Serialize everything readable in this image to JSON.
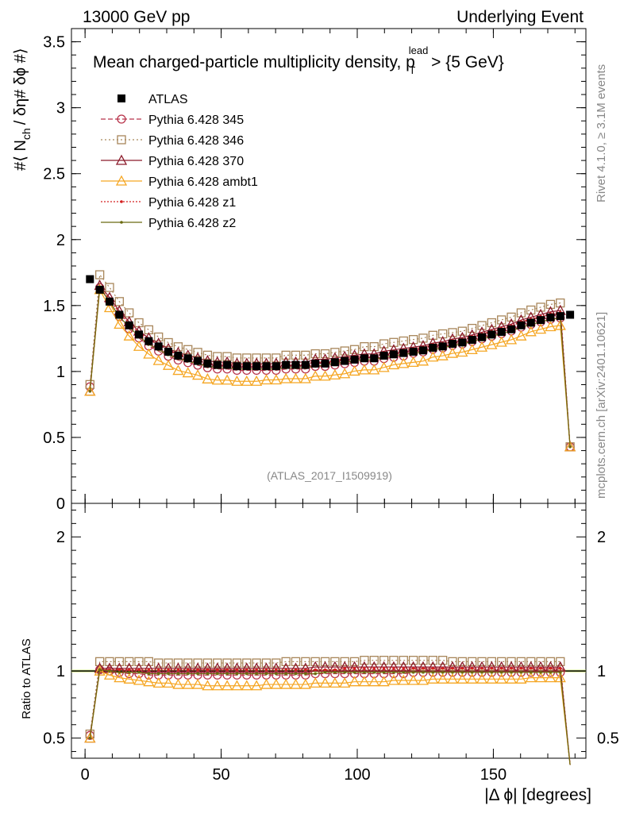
{
  "header": {
    "left": "13000 GeV pp",
    "right": "Underlying Event"
  },
  "side": {
    "rivet": "Rivet 4.1.0, ≥ 3.1M events",
    "mcplots": "mcplots.cern.ch [arXiv:2401.10621]"
  },
  "chart_data": {
    "type": "scatter",
    "title": "Mean charged-particle multiplicity density, p",
    "title_sup": "lead",
    "title_sub": "T",
    "title_end": " > {5 GeV}",
    "analysis_id": "(ATLAS_2017_I1509919)",
    "ylabel_main": {
      "pre": "#⟨ N",
      "sub": "ch",
      "post": "/ δη# δϕ #⟩"
    },
    "ylabel_ratio": "Ratio to ATLAS",
    "xlabel": "|Δ ϕ| [degrees]",
    "xlim": [
      -5,
      184
    ],
    "ylim_main": [
      0,
      3.6
    ],
    "ylim_ratio": [
      0.35,
      2.25
    ],
    "x_ticks": [
      "0",
      "50",
      "100",
      "150"
    ],
    "y_ticks_main": [
      "0",
      "0.5",
      "1",
      "1.5",
      "2",
      "2.5",
      "3",
      "3.5"
    ],
    "y_ticks_ratio": [
      "0.5",
      "1",
      "2"
    ],
    "x": [
      1.8,
      5.4,
      9.0,
      12.6,
      16.2,
      19.8,
      23.4,
      27.0,
      30.6,
      34.2,
      37.8,
      41.4,
      45.0,
      48.6,
      52.2,
      55.8,
      59.4,
      63.0,
      66.6,
      70.2,
      73.8,
      77.4,
      81.0,
      84.6,
      88.2,
      91.8,
      95.4,
      99.0,
      102.6,
      106.2,
      109.8,
      113.4,
      117.0,
      120.6,
      124.2,
      127.8,
      131.4,
      135.0,
      138.6,
      142.2,
      145.8,
      149.4,
      153.0,
      156.6,
      160.2,
      163.8,
      167.4,
      171.0,
      174.6,
      178.2
    ],
    "atlas": [
      1.7,
      1.62,
      1.53,
      1.43,
      1.35,
      1.28,
      1.23,
      1.19,
      1.15,
      1.12,
      1.1,
      1.08,
      1.06,
      1.05,
      1.05,
      1.04,
      1.04,
      1.04,
      1.04,
      1.04,
      1.05,
      1.05,
      1.05,
      1.06,
      1.06,
      1.07,
      1.08,
      1.09,
      1.1,
      1.1,
      1.12,
      1.13,
      1.14,
      1.15,
      1.16,
      1.18,
      1.19,
      1.21,
      1.22,
      1.24,
      1.26,
      1.28,
      1.3,
      1.32,
      1.35,
      1.37,
      1.39,
      1.41,
      1.42,
      1.43
    ],
    "series": [
      {
        "name": "Pythia 6.428 345",
        "color": "#b8334a",
        "marker": "circle-open",
        "dash": "6,3",
        "ratio": [
          0.52,
          1.01,
          1.0,
          0.99,
          0.98,
          0.98,
          0.97,
          0.97,
          0.97,
          0.97,
          0.97,
          0.97,
          0.97,
          0.97,
          0.97,
          0.97,
          0.97,
          0.97,
          0.97,
          0.97,
          0.97,
          0.97,
          0.97,
          0.98,
          0.98,
          0.98,
          0.98,
          0.98,
          0.98,
          0.98,
          0.98,
          0.98,
          0.98,
          0.99,
          0.99,
          0.99,
          0.99,
          0.99,
          0.99,
          0.99,
          0.99,
          0.99,
          0.99,
          0.99,
          0.99,
          0.99,
          0.99,
          0.99,
          0.99,
          0.3
        ]
      },
      {
        "name": "Pythia 6.428 346",
        "color": "#a8865a",
        "marker": "square-open",
        "dash": "2,3",
        "ratio": [
          0.53,
          1.07,
          1.07,
          1.07,
          1.07,
          1.07,
          1.07,
          1.06,
          1.06,
          1.06,
          1.06,
          1.06,
          1.06,
          1.06,
          1.06,
          1.06,
          1.06,
          1.06,
          1.06,
          1.06,
          1.07,
          1.07,
          1.07,
          1.07,
          1.07,
          1.07,
          1.07,
          1.07,
          1.08,
          1.08,
          1.08,
          1.08,
          1.08,
          1.08,
          1.08,
          1.08,
          1.08,
          1.07,
          1.07,
          1.07,
          1.07,
          1.07,
          1.07,
          1.07,
          1.07,
          1.07,
          1.07,
          1.07,
          1.07,
          0.3
        ]
      },
      {
        "name": "Pythia 6.428 370",
        "color": "#8b1a2a",
        "marker": "triangle-open",
        "dash": "",
        "ratio": [
          0.5,
          1.02,
          1.02,
          1.02,
          1.02,
          1.02,
          1.02,
          1.02,
          1.02,
          1.02,
          1.02,
          1.02,
          1.02,
          1.02,
          1.02,
          1.02,
          1.02,
          1.02,
          1.02,
          1.02,
          1.02,
          1.02,
          1.02,
          1.03,
          1.03,
          1.03,
          1.03,
          1.03,
          1.03,
          1.03,
          1.03,
          1.03,
          1.03,
          1.03,
          1.03,
          1.03,
          1.03,
          1.03,
          1.03,
          1.03,
          1.03,
          1.03,
          1.03,
          1.03,
          1.03,
          1.03,
          1.03,
          1.03,
          1.03,
          0.3
        ]
      },
      {
        "name": "Pythia 6.428 ambt1",
        "color": "#f5a623",
        "marker": "triangle-open",
        "dash": "",
        "ratio": [
          0.5,
          1.0,
          0.97,
          0.95,
          0.94,
          0.93,
          0.92,
          0.91,
          0.91,
          0.9,
          0.9,
          0.9,
          0.89,
          0.89,
          0.89,
          0.89,
          0.89,
          0.89,
          0.9,
          0.9,
          0.9,
          0.9,
          0.9,
          0.91,
          0.91,
          0.91,
          0.91,
          0.92,
          0.92,
          0.92,
          0.92,
          0.93,
          0.93,
          0.93,
          0.93,
          0.94,
          0.94,
          0.94,
          0.94,
          0.94,
          0.94,
          0.94,
          0.94,
          0.94,
          0.94,
          0.95,
          0.95,
          0.95,
          0.95,
          0.3
        ]
      },
      {
        "name": "Pythia 6.428 z1",
        "color": "#d42020",
        "marker": "dot",
        "dash": "2,2",
        "ratio": [
          0.5,
          1.01,
          1.01,
          1.01,
          1.01,
          1.01,
          1.01,
          1.01,
          1.01,
          1.01,
          1.01,
          1.01,
          1.01,
          1.01,
          1.01,
          1.01,
          1.01,
          1.01,
          1.01,
          1.01,
          1.01,
          1.01,
          1.01,
          1.01,
          1.01,
          1.01,
          1.02,
          1.02,
          1.02,
          1.02,
          1.02,
          1.02,
          1.02,
          1.02,
          1.02,
          1.02,
          1.02,
          1.02,
          1.02,
          1.02,
          1.02,
          1.02,
          1.02,
          1.02,
          1.02,
          1.02,
          1.02,
          1.02,
          1.02,
          0.3
        ]
      },
      {
        "name": "Pythia 6.428 z2",
        "color": "#6b6b10",
        "marker": "dot",
        "dash": "",
        "ratio": [
          0.5,
          1.01,
          1.0,
          0.99,
          0.99,
          0.99,
          0.98,
          0.98,
          0.98,
          0.98,
          0.98,
          0.98,
          0.98,
          0.98,
          0.98,
          0.98,
          0.98,
          0.98,
          0.98,
          0.98,
          0.98,
          0.98,
          0.98,
          0.98,
          0.99,
          0.99,
          0.99,
          0.99,
          0.99,
          0.99,
          0.99,
          0.99,
          0.99,
          0.99,
          0.99,
          0.99,
          0.99,
          0.99,
          0.99,
          0.99,
          0.99,
          0.99,
          0.99,
          0.99,
          0.99,
          0.99,
          0.99,
          0.99,
          0.99,
          0.3
        ]
      }
    ],
    "legend_data_label": "ATLAS",
    "colors": {
      "data": "#000000",
      "band": "#ccee66"
    }
  }
}
